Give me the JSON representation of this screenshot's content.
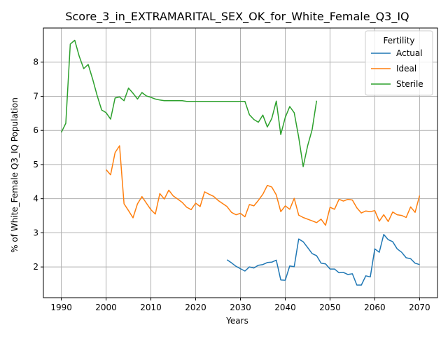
{
  "chart_data": {
    "type": "line",
    "title": "Score_3_in_EXTRAMARITAL_SEX_OK_for_White_Female_Q3_IQ",
    "xlabel": "Years",
    "ylabel": "% of White_Female Q3_IQ Population",
    "xlim": [
      1986,
      2074
    ],
    "ylim": [
      1.1,
      9.0
    ],
    "xticks": [
      1990,
      2000,
      2010,
      2020,
      2030,
      2040,
      2050,
      2060,
      2070
    ],
    "yticks": [
      2,
      3,
      4,
      5,
      6,
      7,
      8
    ],
    "grid": true,
    "legend": {
      "title": "Fertility",
      "position": "top-right"
    },
    "series": [
      {
        "name": "Actual",
        "color": "#1f77b4",
        "x": [
          2027,
          2028,
          2029,
          2030,
          2031,
          2032,
          2033,
          2034,
          2035,
          2036,
          2037,
          2038,
          2039,
          2040,
          2041,
          2042,
          2043,
          2044,
          2045,
          2046,
          2047,
          2048,
          2049,
          2050,
          2051,
          2052,
          2053,
          2054,
          2055,
          2056,
          2057,
          2058,
          2059,
          2060,
          2061,
          2062,
          2063,
          2064,
          2065,
          2066,
          2067,
          2068,
          2069,
          2070
        ],
        "values": [
          2.21,
          2.12,
          2.02,
          1.95,
          1.88,
          2.0,
          1.97,
          2.05,
          2.07,
          2.13,
          2.14,
          2.2,
          1.62,
          1.61,
          2.03,
          2.01,
          2.82,
          2.74,
          2.57,
          2.39,
          2.33,
          2.11,
          2.09,
          1.94,
          1.94,
          1.83,
          1.84,
          1.78,
          1.8,
          1.47,
          1.47,
          1.74,
          1.71,
          2.53,
          2.43,
          2.95,
          2.8,
          2.74,
          2.53,
          2.43,
          2.27,
          2.24,
          2.11,
          2.07
        ]
      },
      {
        "name": "Ideal",
        "color": "#ff7f0e",
        "x": [
          2000,
          2001,
          2002,
          2003,
          2004,
          2005,
          2006,
          2007,
          2008,
          2009,
          2010,
          2011,
          2012,
          2013,
          2014,
          2015,
          2016,
          2017,
          2018,
          2019,
          2020,
          2021,
          2022,
          2023,
          2024,
          2025,
          2026,
          2027,
          2028,
          2029,
          2030,
          2031,
          2032,
          2033,
          2034,
          2035,
          2036,
          2037,
          2038,
          2039,
          2040,
          2041,
          2042,
          2043,
          2044,
          2045,
          2046,
          2047,
          2048,
          2049,
          2050,
          2051,
          2052,
          2053,
          2054,
          2055,
          2056,
          2057,
          2058,
          2059,
          2060,
          2061,
          2062,
          2063,
          2064,
          2065,
          2066,
          2067,
          2068,
          2069,
          2070
        ],
        "values": [
          4.85,
          4.7,
          5.35,
          5.55,
          3.85,
          3.65,
          3.44,
          3.85,
          4.06,
          3.87,
          3.68,
          3.55,
          4.15,
          3.99,
          4.25,
          4.08,
          3.99,
          3.89,
          3.75,
          3.68,
          3.87,
          3.77,
          4.2,
          4.13,
          4.07,
          3.95,
          3.86,
          3.77,
          3.6,
          3.53,
          3.57,
          3.47,
          3.83,
          3.79,
          3.95,
          4.13,
          4.39,
          4.34,
          4.11,
          3.62,
          3.79,
          3.69,
          4.01,
          3.52,
          3.45,
          3.4,
          3.35,
          3.3,
          3.4,
          3.22,
          3.75,
          3.69,
          3.98,
          3.93,
          3.98,
          3.96,
          3.73,
          3.58,
          3.64,
          3.62,
          3.65,
          3.34,
          3.53,
          3.33,
          3.61,
          3.53,
          3.51,
          3.45,
          3.76,
          3.6,
          4.09
        ]
      },
      {
        "name": "Sterile",
        "color": "#2ca02c",
        "x": [
          1990,
          1991,
          1992,
          1993,
          1994,
          1995,
          1996,
          1997,
          1998,
          1999,
          2000,
          2001,
          2002,
          2003,
          2004,
          2005,
          2006,
          2007,
          2008,
          2009,
          2010,
          2011,
          2012,
          2013,
          2014,
          2015,
          2016,
          2017,
          2018,
          2019,
          2020,
          2021,
          2022,
          2023,
          2024,
          2025,
          2026,
          2027,
          2028,
          2029,
          2030,
          2031,
          2032,
          2033,
          2034,
          2035,
          2036,
          2037,
          2038,
          2039,
          2040,
          2041,
          2042,
          2043,
          2044,
          2045,
          2046,
          2047
        ],
        "values": [
          5.94,
          6.21,
          8.53,
          8.64,
          8.17,
          7.81,
          7.93,
          7.5,
          7.02,
          6.6,
          6.52,
          6.33,
          6.95,
          6.98,
          6.87,
          7.24,
          7.09,
          6.92,
          7.11,
          7.01,
          6.97,
          6.92,
          6.89,
          6.87,
          6.87,
          6.87,
          6.87,
          6.87,
          6.85,
          6.85,
          6.85,
          6.85,
          6.85,
          6.85,
          6.85,
          6.85,
          6.85,
          6.85,
          6.85,
          6.85,
          6.85,
          6.85,
          6.46,
          6.32,
          6.24,
          6.45,
          6.1,
          6.35,
          6.86,
          5.88,
          6.38,
          6.7,
          6.52,
          5.8,
          4.94,
          5.55,
          6.02,
          6.87
        ]
      }
    ]
  }
}
